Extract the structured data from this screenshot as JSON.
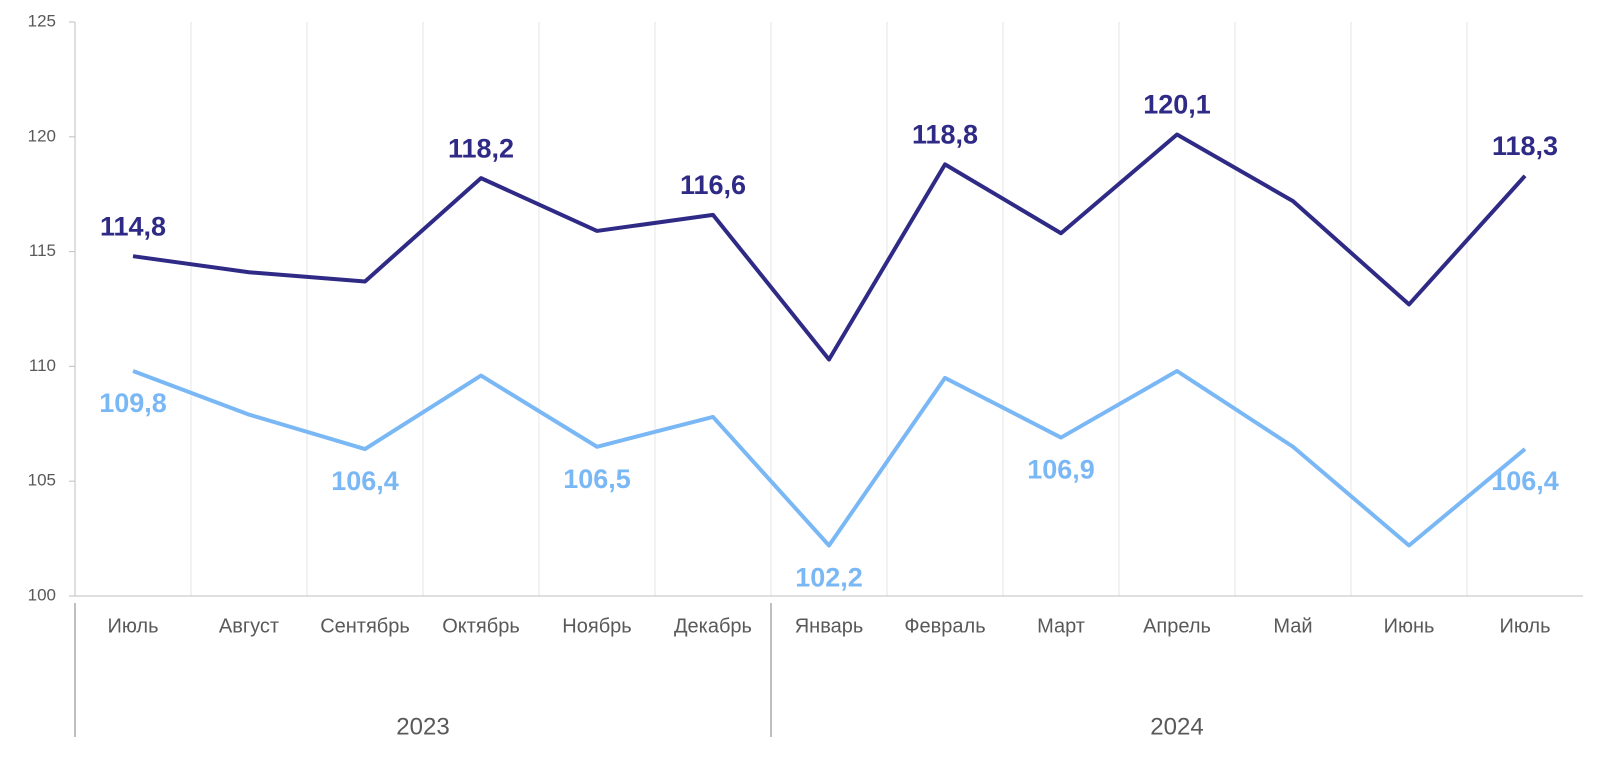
{
  "chart_data": {
    "type": "line",
    "categories": [
      "Июль",
      "Август",
      "Сентябрь",
      "Октябрь",
      "Ноябрь",
      "Декабрь",
      "Январь",
      "Февраль",
      "Март",
      "Апрель",
      "Май",
      "Июнь",
      "Июль"
    ],
    "groups": [
      {
        "label": "2023",
        "count": 6
      },
      {
        "label": "2024",
        "count": 7
      }
    ],
    "series": [
      {
        "color": "#2e2a85",
        "values": [
          114.8,
          114.1,
          113.7,
          118.2,
          115.9,
          116.6,
          110.3,
          118.8,
          115.8,
          120.1,
          117.2,
          112.7,
          118.3
        ],
        "value_labels": [
          "114,8",
          null,
          null,
          "118,2",
          null,
          "116,6",
          null,
          "118,8",
          null,
          "120,1",
          null,
          null,
          "118,3"
        ]
      },
      {
        "color": "#7ab8f5",
        "values": [
          109.8,
          107.9,
          106.4,
          109.6,
          106.5,
          107.8,
          102.2,
          109.5,
          106.9,
          109.8,
          106.5,
          102.2,
          106.4
        ],
        "value_labels": [
          "109,8",
          null,
          "106,4",
          null,
          "106,5",
          null,
          "102,2",
          null,
          "106,9",
          null,
          null,
          null,
          "106,4"
        ]
      }
    ],
    "ylim": [
      100,
      125
    ],
    "yticks": [
      100,
      105,
      110,
      115,
      120,
      125
    ],
    "grid": true
  }
}
